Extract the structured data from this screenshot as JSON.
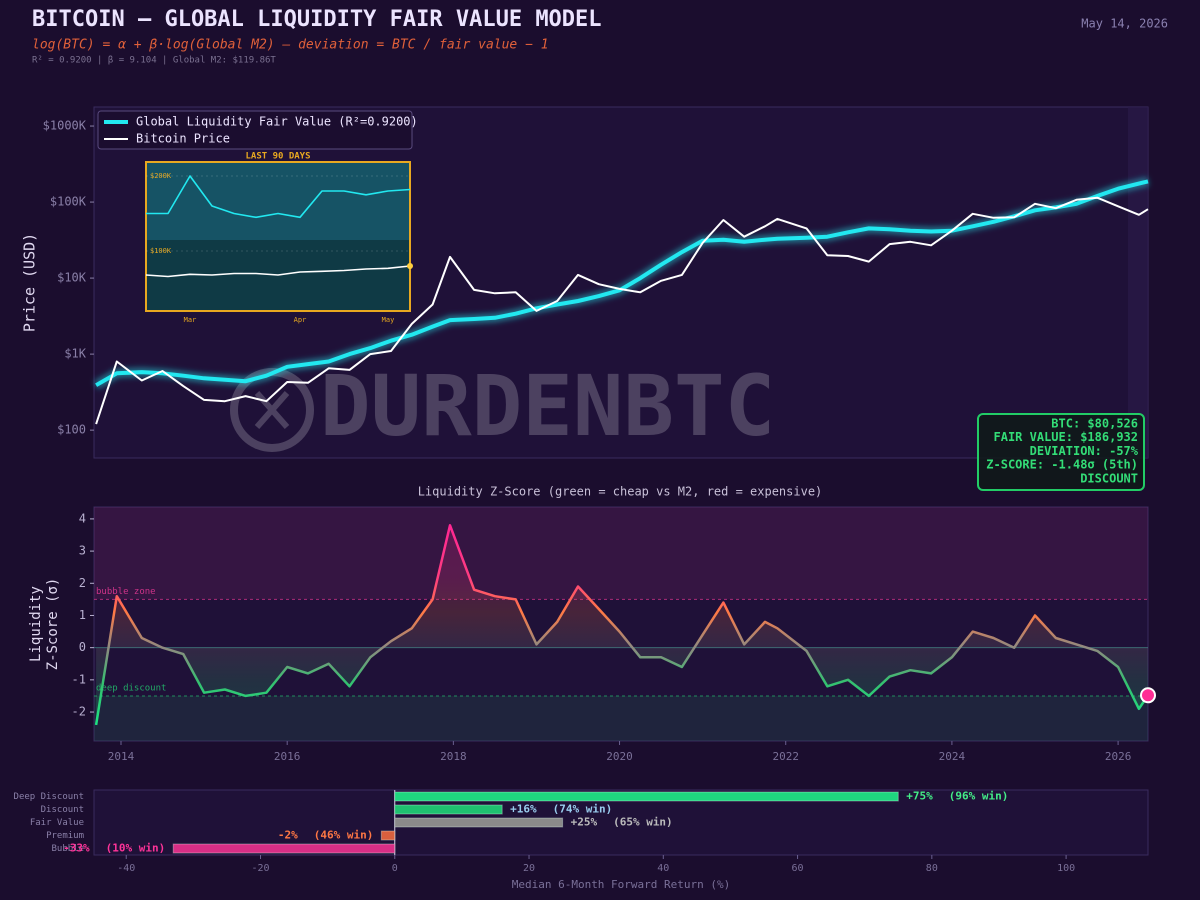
{
  "header": {
    "title": "BITCOIN — GLOBAL LIQUIDITY FAIR VALUE MODEL",
    "formula": "log(BTC) = α + β·log(Global M2)  —  deviation = BTC / fair value − 1",
    "stats": "R² = 0.9200  |  β = 9.104  |  Global M2: $119.86T",
    "date": "May 14, 2026"
  },
  "watermark": "DURDENBTC",
  "info_box": {
    "lines": [
      "BTC: $80,526",
      "FAIR VALUE: $186,932",
      "DEVIATION: -57%",
      "Z-SCORE: -1.48σ (5th)",
      "DISCOUNT"
    ],
    "color": "#33dd77"
  },
  "chart_data": [
    {
      "type": "line",
      "ylabel": "Price (USD)",
      "log_scale": true,
      "grid": false,
      "legend": "upper left",
      "xlim": [
        2013.675,
        2026.36
      ],
      "ylim": [
        43,
        1780000
      ],
      "yticks": [
        {
          "value": 100,
          "label": "$100"
        },
        {
          "value": 1000,
          "label": "$1K"
        },
        {
          "value": 10000,
          "label": "$10K"
        },
        {
          "value": 100000,
          "label": "$100K"
        },
        {
          "value": 1000000,
          "label": "$1000K"
        }
      ],
      "x": [
        2013.7,
        2013.95,
        2014.25,
        2014.5,
        2014.75,
        2015.0,
        2015.25,
        2015.5,
        2015.75,
        2016.0,
        2016.25,
        2016.5,
        2016.75,
        2017.0,
        2017.25,
        2017.5,
        2017.75,
        2017.96,
        2018.25,
        2018.5,
        2018.75,
        2019.0,
        2019.25,
        2019.5,
        2019.75,
        2020.0,
        2020.25,
        2020.5,
        2020.75,
        2021.0,
        2021.25,
        2021.5,
        2021.75,
        2021.9,
        2022.25,
        2022.5,
        2022.75,
        2023.0,
        2023.25,
        2023.5,
        2023.75,
        2024.0,
        2024.25,
        2024.5,
        2024.75,
        2025.0,
        2025.25,
        2025.5,
        2025.75,
        2026.0,
        2026.25,
        2026.36
      ],
      "series": [
        {
          "name": "Global Liquidity Fair Value (R²=0.9200)",
          "color": "#22e8f0",
          "values": [
            390,
            560,
            580,
            560,
            520,
            480,
            460,
            440,
            520,
            680,
            740,
            800,
            1000,
            1200,
            1500,
            1800,
            2300,
            2800,
            2900,
            3000,
            3400,
            4000,
            4500,
            5000,
            5800,
            6900,
            10000,
            15000,
            22000,
            31000,
            32000,
            30000,
            32000,
            33000,
            34000,
            35000,
            40000,
            45000,
            44000,
            42000,
            41000,
            42000,
            48000,
            55000,
            65000,
            78000,
            85000,
            95000,
            120000,
            150000,
            175000,
            186932
          ]
        },
        {
          "name": "Bitcoin Price",
          "color": "#ffffff",
          "values": [
            120,
            800,
            450,
            600,
            380,
            250,
            240,
            280,
            240,
            430,
            420,
            650,
            620,
            1000,
            1100,
            2500,
            4500,
            19000,
            7000,
            6300,
            6500,
            3700,
            5000,
            11000,
            8300,
            7200,
            6500,
            9200,
            11000,
            29000,
            58000,
            35000,
            48000,
            60000,
            45000,
            20000,
            19500,
            16500,
            28000,
            30000,
            27000,
            42000,
            70000,
            62000,
            63000,
            95000,
            83000,
            107000,
            114000,
            88000,
            68000,
            80526
          ]
        }
      ]
    },
    {
      "type": "line",
      "title": "LAST 90 DAYS",
      "color": "#e8a820",
      "categories": [
        null,
        null,
        "Mar",
        null,
        null,
        null,
        null,
        "Apr",
        null,
        null,
        null,
        "May",
        null
      ],
      "ylim": [
        20000,
        218700
      ],
      "yticks": [
        {
          "value": 200000,
          "label": "$200K"
        },
        {
          "value": 100000,
          "label": "$100K"
        }
      ],
      "series": [
        {
          "color": "#22e8f0",
          "values": [
            150000,
            150000,
            200000,
            160000,
            150000,
            145000,
            150000,
            145000,
            180000,
            180000,
            175000,
            180000,
            182000
          ]
        },
        {
          "color": "#ffffff",
          "values": [
            68000,
            66000,
            69000,
            68000,
            70000,
            70000,
            68000,
            72000,
            73000,
            74000,
            76000,
            77000,
            80000
          ]
        }
      ]
    },
    {
      "type": "line",
      "title": "Liquidity Z-Score  (green = cheap vs M2, red = expensive)",
      "ylabel": [
        "Liquidity",
        "Z-Score (σ)"
      ],
      "xlim": [
        2013.675,
        2026.36
      ],
      "xticks": [
        2014,
        2016,
        2018,
        2020,
        2022,
        2024,
        2026
      ],
      "ylim": [
        -2.9,
        4.37
      ],
      "yticks": [
        4,
        3,
        2,
        1,
        0,
        -1,
        -2
      ],
      "thresholds": [
        {
          "value": 1.5,
          "label": "bubble zone",
          "color": "#cc3388"
        },
        {
          "value": -1.5,
          "label": "deep discount",
          "color": "#22aa66"
        }
      ],
      "x": [
        2013.7,
        2013.95,
        2014.25,
        2014.5,
        2014.75,
        2015.0,
        2015.25,
        2015.5,
        2015.75,
        2016.0,
        2016.25,
        2016.5,
        2016.75,
        2017.0,
        2017.25,
        2017.5,
        2017.75,
        2017.96,
        2018.25,
        2018.5,
        2018.75,
        2019.0,
        2019.25,
        2019.5,
        2019.75,
        2020.0,
        2020.25,
        2020.5,
        2020.75,
        2021.0,
        2021.25,
        2021.5,
        2021.75,
        2021.9,
        2022.25,
        2022.5,
        2022.75,
        2023.0,
        2023.25,
        2023.5,
        2023.75,
        2024.0,
        2024.25,
        2024.5,
        2024.75,
        2025.0,
        2025.25,
        2025.5,
        2025.75,
        2026.0,
        2026.25,
        2026.36
      ],
      "values": [
        -2.4,
        1.6,
        0.3,
        0,
        -0.2,
        -1.4,
        -1.3,
        -1.5,
        -1.4,
        -0.6,
        -0.8,
        -0.5,
        -1.2,
        -0.3,
        0.2,
        0.6,
        1.5,
        3.8,
        1.8,
        1.6,
        1.5,
        0.1,
        0.8,
        1.9,
        1.2,
        0.5,
        -0.3,
        -0.3,
        -0.6,
        0.4,
        1.4,
        0.1,
        0.8,
        0.6,
        -0.1,
        -1.2,
        -1.0,
        -1.5,
        -0.9,
        -0.7,
        -0.8,
        -0.3,
        0.5,
        0.3,
        0.0,
        1.0,
        0.3,
        0.1,
        -0.1,
        -0.6,
        -1.9,
        -1.48
      ]
    },
    {
      "type": "barh",
      "xlabel": "Median 6-Month Forward Return (%)",
      "xlim": [
        -44.8,
        112.2
      ],
      "xticks": [
        -40,
        -20,
        0,
        20,
        40,
        60,
        80,
        100
      ],
      "categories": [
        "Deep Discount",
        "Discount",
        "Fair Value",
        "Premium",
        "Bubble"
      ],
      "values": [
        75,
        16,
        25,
        -2,
        -33
      ],
      "value_labels": [
        "+75%",
        "+16%",
        "+25%",
        "-2%",
        "-33%"
      ],
      "win_labels": [
        "(96% win)",
        "(74% win)",
        "(65% win)",
        "(46% win)",
        "(10% win)"
      ],
      "colors": [
        "#1fd67f",
        "#1fc070",
        "#8a8a8a",
        "#d8603e",
        "#d82e86"
      ],
      "label_colors": [
        "#44ee88",
        "#99ccee",
        "#bbbbbb",
        "#ff7744",
        "#ff3399"
      ]
    }
  ]
}
